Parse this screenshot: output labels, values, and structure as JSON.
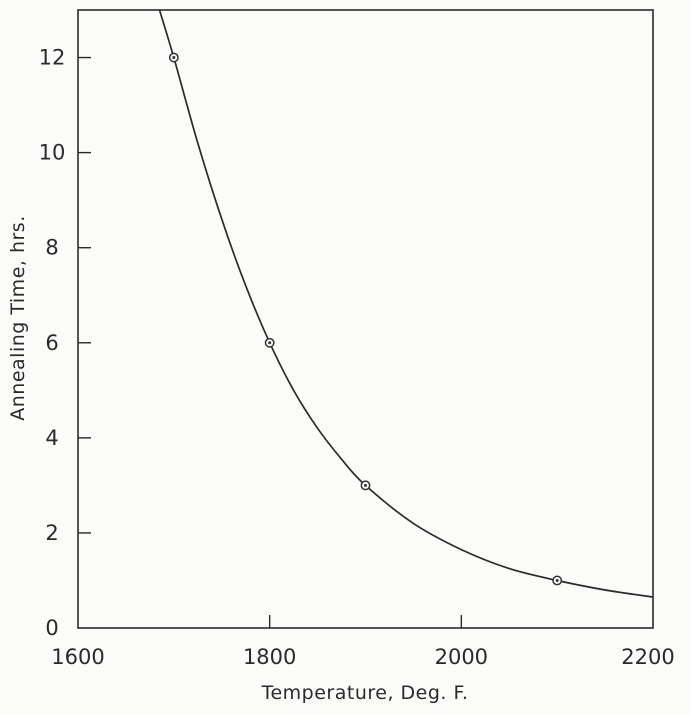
{
  "chart_data": {
    "type": "line",
    "title": "",
    "xlabel": "Temperature, Deg. F.",
    "ylabel": "Annealing Time, hrs.",
    "xlim": [
      1600,
      2200
    ],
    "ylim": [
      0,
      13
    ],
    "xticks": [
      1600,
      1800,
      2000,
      2200
    ],
    "yticks": [
      0,
      2,
      4,
      6,
      8,
      10,
      12
    ],
    "grid": false,
    "legend": "none",
    "line_color": "#2b2b2b",
    "series": [
      {
        "points": [
          {
            "x": 1700,
            "y": 12
          },
          {
            "x": 1800,
            "y": 6
          },
          {
            "x": 1900,
            "y": 3
          },
          {
            "x": 2100,
            "y": 1
          }
        ],
        "curve": [
          {
            "x": 1685,
            "y": 13.0
          },
          {
            "x": 1700,
            "y": 12.0
          },
          {
            "x": 1725,
            "y": 10.2
          },
          {
            "x": 1750,
            "y": 8.6
          },
          {
            "x": 1775,
            "y": 7.2
          },
          {
            "x": 1800,
            "y": 6.0
          },
          {
            "x": 1825,
            "y": 5.0
          },
          {
            "x": 1850,
            "y": 4.2
          },
          {
            "x": 1875,
            "y": 3.55
          },
          {
            "x": 1900,
            "y": 3.0
          },
          {
            "x": 1950,
            "y": 2.2
          },
          {
            "x": 2000,
            "y": 1.65
          },
          {
            "x": 2050,
            "y": 1.25
          },
          {
            "x": 2100,
            "y": 1.0
          },
          {
            "x": 2150,
            "y": 0.8
          },
          {
            "x": 2200,
            "y": 0.65
          }
        ]
      }
    ]
  }
}
